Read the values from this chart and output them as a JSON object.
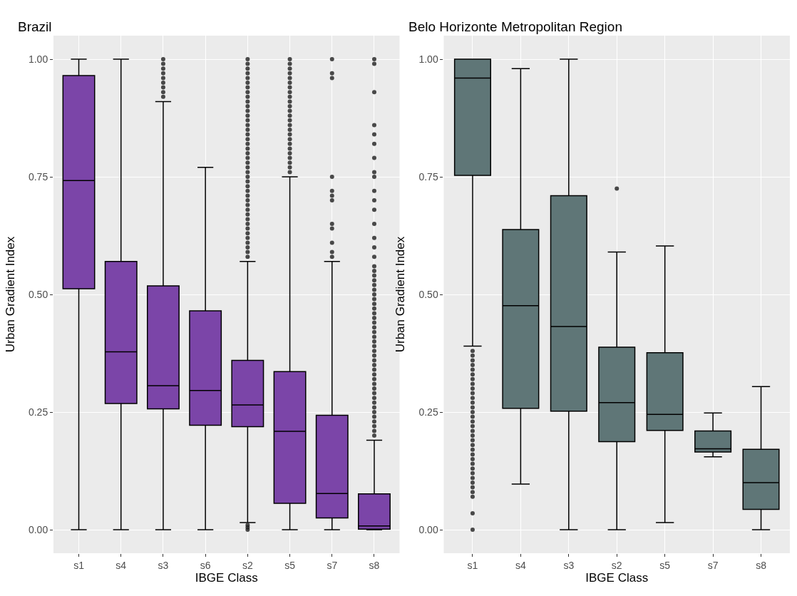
{
  "chart_data": [
    {
      "type": "box",
      "title": "Brazil",
      "xlabel": "IBGE Class",
      "ylabel": "Urban Gradient Index",
      "categories": [
        "s1",
        "s4",
        "s3",
        "s6",
        "s2",
        "s5",
        "s7",
        "s8"
      ],
      "ylim": [
        -0.05,
        1.05
      ],
      "yticks": [
        {
          "value": 0,
          "label": "0.00"
        },
        {
          "value": 0.25,
          "label": "0.25"
        },
        {
          "value": 0.5,
          "label": "0.50"
        },
        {
          "value": 0.75,
          "label": "0.75"
        },
        {
          "value": 1,
          "label": "1.00"
        }
      ],
      "grid": true,
      "series": [
        {
          "color": "#7b45a8",
          "boxes": [
            {
              "low": 0,
              "q1": 0.512,
              "median": 0.742,
              "q3": 0.965,
              "high": 1.0
            },
            {
              "low": 0,
              "q1": 0.268,
              "median": 0.378,
              "q3": 0.57,
              "high": 1.0
            },
            {
              "low": 0,
              "q1": 0.257,
              "median": 0.306,
              "q3": 0.518,
              "high": 0.91,
              "outliers": [
                0.92,
                0.93,
                0.94,
                0.95,
                0.96,
                0.97,
                0.98,
                0.99,
                1.0
              ]
            },
            {
              "low": 0,
              "q1": 0.222,
              "median": 0.296,
              "q3": 0.465,
              "high": 0.77
            },
            {
              "low": 0.015,
              "q1": 0.219,
              "median": 0.265,
              "q3": 0.36,
              "high": 0.57,
              "outliers": [
                0.0,
                0.005,
                0.01,
                0.58,
                0.59,
                0.6,
                0.61,
                0.62,
                0.63,
                0.64,
                0.65,
                0.66,
                0.67,
                0.68,
                0.69,
                0.7,
                0.71,
                0.72,
                0.73,
                0.74,
                0.75,
                0.76,
                0.77,
                0.78,
                0.79,
                0.8,
                0.81,
                0.82,
                0.83,
                0.84,
                0.85,
                0.86,
                0.87,
                0.88,
                0.89,
                0.9,
                0.91,
                0.92,
                0.93,
                0.94,
                0.95,
                0.96,
                0.97,
                0.98,
                0.99,
                1.0
              ]
            },
            {
              "low": 0,
              "q1": 0.056,
              "median": 0.209,
              "q3": 0.336,
              "high": 0.75,
              "outliers": [
                0.76,
                0.77,
                0.78,
                0.79,
                0.8,
                0.81,
                0.82,
                0.83,
                0.84,
                0.85,
                0.86,
                0.87,
                0.88,
                0.89,
                0.9,
                0.91,
                0.92,
                0.93,
                0.94,
                0.95,
                0.96,
                0.97,
                0.98,
                0.99,
                1.0
              ]
            },
            {
              "low": 0,
              "q1": 0.025,
              "median": 0.077,
              "q3": 0.243,
              "high": 0.57,
              "outliers": [
                0.58,
                0.59,
                0.61,
                0.64,
                0.65,
                0.7,
                0.71,
                0.72,
                0.75,
                0.96,
                0.97,
                1.0
              ]
            },
            {
              "low": 0,
              "q1": 0.001,
              "median": 0.008,
              "q3": 0.076,
              "high": 0.19,
              "outliers": [
                0.2,
                0.21,
                0.22,
                0.23,
                0.24,
                0.25,
                0.26,
                0.27,
                0.28,
                0.29,
                0.3,
                0.31,
                0.32,
                0.33,
                0.34,
                0.35,
                0.36,
                0.37,
                0.38,
                0.39,
                0.4,
                0.41,
                0.42,
                0.43,
                0.44,
                0.45,
                0.46,
                0.47,
                0.48,
                0.49,
                0.5,
                0.51,
                0.52,
                0.53,
                0.54,
                0.55,
                0.56,
                0.58,
                0.6,
                0.62,
                0.65,
                0.68,
                0.7,
                0.72,
                0.75,
                0.76,
                0.79,
                0.82,
                0.84,
                0.86,
                0.93,
                0.99,
                1.0
              ]
            }
          ]
        }
      ]
    },
    {
      "type": "box",
      "title": "Belo Horizonte Metropolitan Region",
      "xlabel": "IBGE Class",
      "ylabel": "Urban Gradient Index",
      "categories": [
        "s1",
        "s4",
        "s3",
        "s2",
        "s5",
        "s7",
        "s8"
      ],
      "ylim": [
        -0.05,
        1.05
      ],
      "yticks": [
        {
          "value": 0,
          "label": "0.00"
        },
        {
          "value": 0.25,
          "label": "0.25"
        },
        {
          "value": 0.5,
          "label": "0.50"
        },
        {
          "value": 0.75,
          "label": "0.75"
        },
        {
          "value": 1,
          "label": "1.00"
        }
      ],
      "grid": true,
      "series": [
        {
          "color": "#5f7677",
          "boxes": [
            {
              "low": 0.39,
              "q1": 0.753,
              "median": 0.96,
              "q3": 1.0,
              "high": 1.0,
              "outliers": [
                0.0,
                0.035,
                0.07,
                0.08,
                0.09,
                0.1,
                0.11,
                0.12,
                0.13,
                0.14,
                0.15,
                0.16,
                0.17,
                0.18,
                0.19,
                0.2,
                0.21,
                0.22,
                0.23,
                0.24,
                0.25,
                0.26,
                0.27,
                0.28,
                0.29,
                0.3,
                0.31,
                0.32,
                0.33,
                0.34,
                0.35,
                0.36,
                0.37,
                0.38
              ]
            },
            {
              "low": 0.097,
              "q1": 0.258,
              "median": 0.476,
              "q3": 0.638,
              "high": 0.98
            },
            {
              "low": 0,
              "q1": 0.252,
              "median": 0.432,
              "q3": 0.71,
              "high": 1.0
            },
            {
              "low": 0,
              "q1": 0.187,
              "median": 0.27,
              "q3": 0.388,
              "high": 0.59,
              "outliers": [
                0.725
              ]
            },
            {
              "low": 0.015,
              "q1": 0.211,
              "median": 0.245,
              "q3": 0.376,
              "high": 0.603
            },
            {
              "low": 0.155,
              "q1": 0.165,
              "median": 0.172,
              "q3": 0.21,
              "high": 0.248
            },
            {
              "low": 0,
              "q1": 0.043,
              "median": 0.1,
              "q3": 0.171,
              "high": 0.304
            }
          ]
        }
      ]
    }
  ]
}
